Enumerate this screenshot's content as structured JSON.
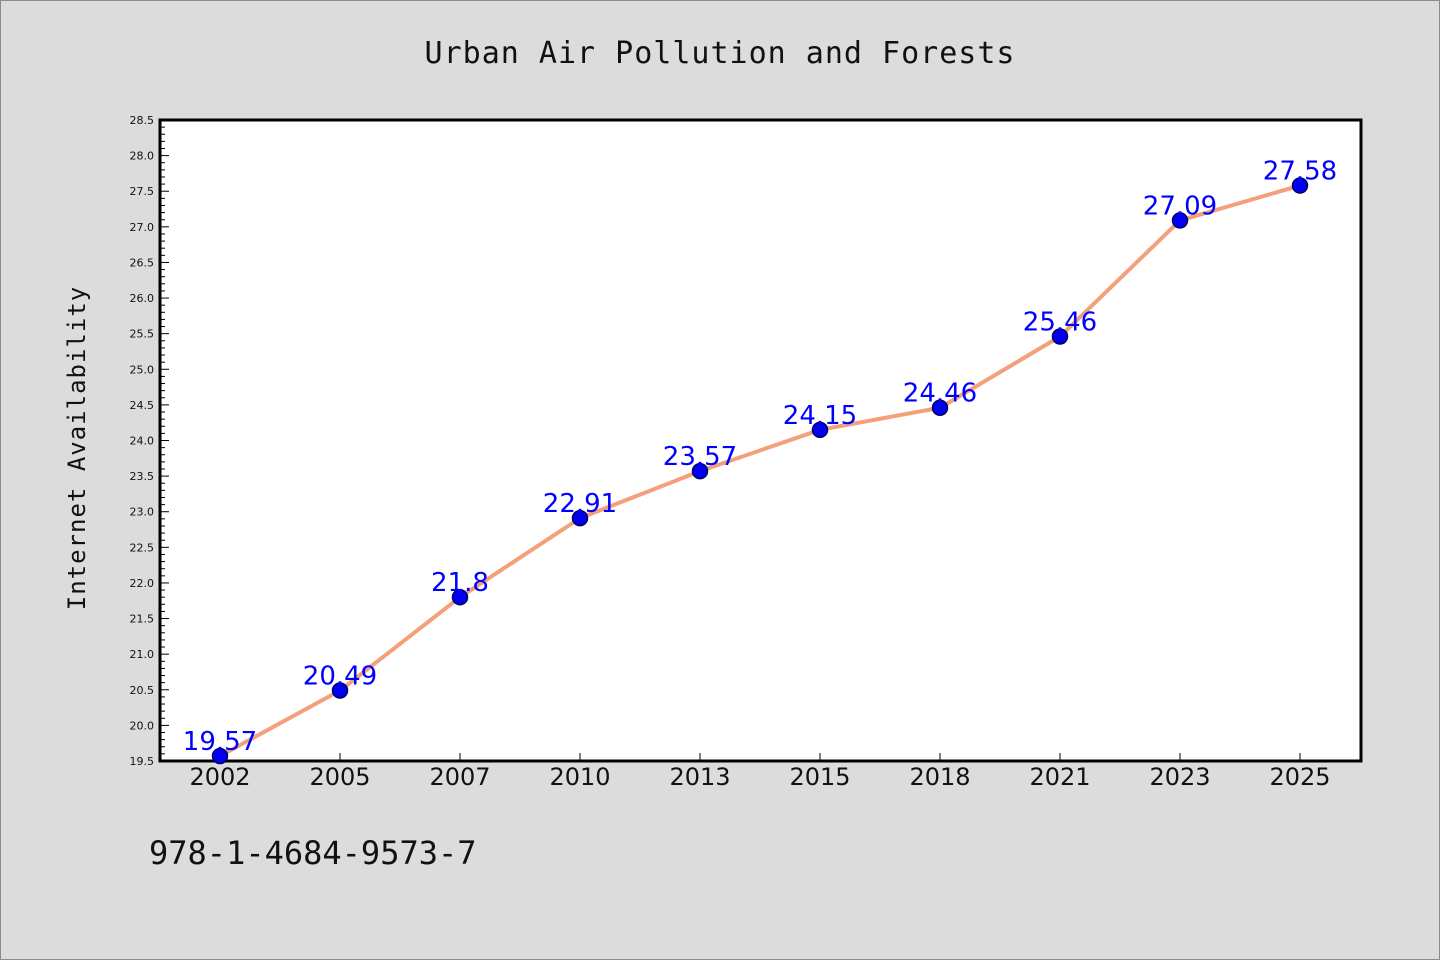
{
  "chart_data": {
    "type": "line",
    "title": "Urban Air Pollution and Forests",
    "xlabel": "",
    "ylabel": "Internet Availability",
    "categories": [
      "2002",
      "2005",
      "2007",
      "2010",
      "2013",
      "2015",
      "2018",
      "2021",
      "2023",
      "2025"
    ],
    "values": [
      19.57,
      20.49,
      21.8,
      22.91,
      23.57,
      24.15,
      24.46,
      25.46,
      27.09,
      27.58
    ],
    "data_labels": [
      "19.57",
      "20.49",
      "21.8",
      "22.91",
      "23.57",
      "24.15",
      "24.46",
      "25.46",
      "27.09",
      "27.58"
    ],
    "ylim": [
      19.5,
      28.5
    ],
    "y_major_ticks": [
      "19.5",
      "20.0",
      "20.5",
      "21.0",
      "21.5",
      "22.0",
      "22.5",
      "23.0",
      "23.5",
      "24.0",
      "24.5",
      "25.0",
      "25.5",
      "26.0",
      "26.5",
      "27.0",
      "27.5",
      "28.0",
      "28.5"
    ],
    "grid": false,
    "legend": "none",
    "colors": {
      "line": "#f4a07a",
      "marker": "#0000ee",
      "marker_edge": "#000066",
      "data_label": "#0000ff",
      "background": "#dcdcdc",
      "plot_area": "#ffffff"
    }
  },
  "footer": {
    "isbn": "978-1-4684-9573-7"
  }
}
